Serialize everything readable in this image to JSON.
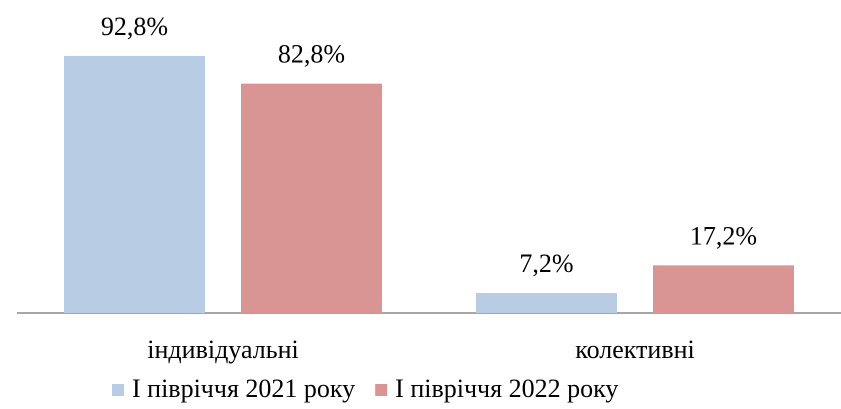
{
  "chart_data": {
    "type": "bar",
    "categories": [
      "індивідуальні",
      "колективні"
    ],
    "series": [
      {
        "name": "І півріччя 2021 року",
        "color": "#b8cce4",
        "values": [
          92.8,
          7.2
        ],
        "value_labels": [
          "92,8%",
          "7,2%"
        ]
      },
      {
        "name": "І півріччя 2022 року",
        "color": "#d99594",
        "values": [
          82.8,
          17.2
        ],
        "value_labels": [
          "82,8%",
          "17,2%"
        ]
      }
    ],
    "legend": "bottom"
  }
}
